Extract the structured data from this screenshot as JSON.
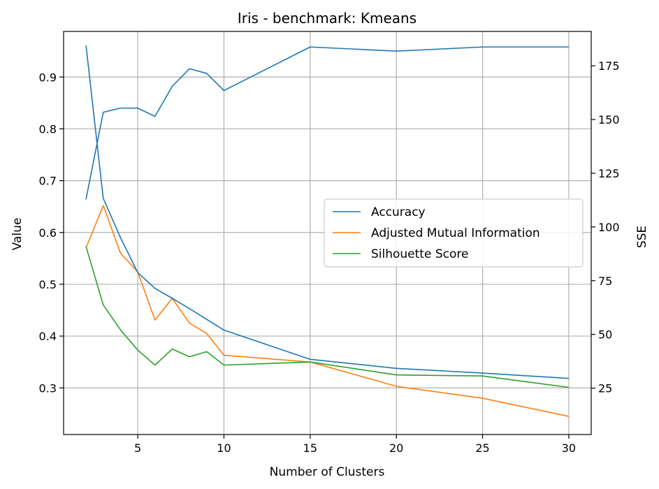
{
  "chart_data": {
    "type": "line",
    "title": "Iris - benchmark: Kmeans",
    "xlabel": "Number of Clusters",
    "ylabel": "Value",
    "y2label": "SSE",
    "x": [
      2,
      3,
      4,
      5,
      6,
      7,
      8,
      9,
      10,
      15,
      20,
      25,
      30
    ],
    "xlim": [
      0.7,
      31.3
    ],
    "ylim": [
      0.21,
      0.988
    ],
    "y2lim": [
      3.4,
      191.0
    ],
    "xticks": [
      5,
      10,
      15,
      20,
      25,
      30
    ],
    "yticks": [
      0.3,
      0.4,
      0.5,
      0.6,
      0.7,
      0.8,
      0.9
    ],
    "y2ticks": [
      25,
      50,
      75,
      100,
      125,
      150,
      175
    ],
    "grid": true,
    "legend_position": "center-right",
    "series": [
      {
        "name": "Accuracy",
        "axis": "left",
        "color": "#1f77b4",
        "values": [
          0.664,
          0.832,
          0.84,
          0.84,
          0.824,
          0.882,
          0.916,
          0.907,
          0.874,
          0.958,
          0.95,
          0.958,
          0.958
        ]
      },
      {
        "name": "Adjusted Mutual Information",
        "axis": "left",
        "color": "#ff7f0e",
        "values": [
          0.57,
          0.652,
          0.56,
          0.524,
          0.431,
          0.473,
          0.425,
          0.405,
          0.363,
          0.35,
          0.303,
          0.28,
          0.245
        ]
      },
      {
        "name": "Silhouette Score",
        "axis": "left",
        "color": "#2ca02c",
        "values": [
          0.573,
          0.46,
          0.412,
          0.373,
          0.344,
          0.375,
          0.36,
          0.37,
          0.344,
          0.35,
          0.325,
          0.323,
          0.301
        ]
      },
      {
        "name": "SSE",
        "axis": "right",
        "color": "#1f77b4",
        "in_legend": false,
        "values": [
          184.5,
          113.3,
          95.0,
          78.8,
          71.4,
          66.8,
          62.0,
          57.0,
          52.0,
          38.4,
          34.2,
          32.0,
          29.5
        ]
      }
    ]
  }
}
